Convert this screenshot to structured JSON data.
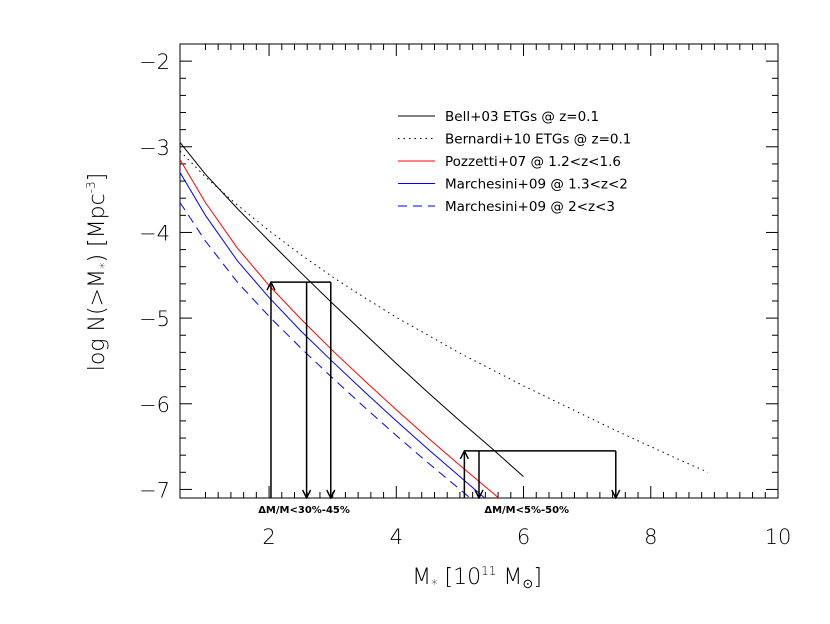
{
  "chart_data": {
    "type": "line",
    "title": "",
    "xlabel": {
      "main": "M",
      "sub": "*",
      "mid": " [10",
      "sup": "11",
      "post": " M",
      "sub2": "⊙",
      "end": "]"
    },
    "ylabel": {
      "main": "log N(>M",
      "sub": "*",
      "mid": ")  [Mpc",
      "sup": "-3",
      "end": "]"
    },
    "xlim": [
      0.6,
      10
    ],
    "ylim": [
      -7.1,
      -1.8
    ],
    "x_ticks": [
      2,
      4,
      6,
      8,
      10
    ],
    "x_tick_labels": [
      "2",
      "4",
      "6",
      "8",
      "10"
    ],
    "y_ticks": [
      -7,
      -6,
      -5,
      -4,
      -3,
      -2
    ],
    "y_tick_labels": [
      "−7",
      "−6",
      "−5",
      "−4",
      "−3",
      "−2"
    ],
    "grid": false,
    "legend_position": "top-right",
    "series": [
      {
        "name": "Bell+03 ETGs @ z=0.1",
        "color": "#000000",
        "dash": "solid",
        "x": [
          0.6,
          1.0,
          1.5,
          2.0,
          2.5,
          3.0,
          3.5,
          4.0,
          4.5,
          5.0,
          5.5,
          6.0
        ],
        "y": [
          -2.95,
          -3.32,
          -3.72,
          -4.1,
          -4.47,
          -4.83,
          -5.18,
          -5.53,
          -5.87,
          -6.2,
          -6.52,
          -6.85
        ]
      },
      {
        "name": "Bernardi+10 ETGs @ z=0.1",
        "color": "#000000",
        "dash": "dotted",
        "x": [
          0.6,
          1.0,
          1.5,
          2.0,
          2.5,
          3.0,
          3.5,
          4.0,
          4.5,
          5.0,
          5.5,
          6.0,
          6.5,
          7.0,
          7.5,
          8.0,
          8.5,
          8.9
        ],
        "y": [
          -3.05,
          -3.35,
          -3.68,
          -3.98,
          -4.26,
          -4.52,
          -4.76,
          -4.99,
          -5.2,
          -5.41,
          -5.6,
          -5.79,
          -5.97,
          -6.15,
          -6.33,
          -6.5,
          -6.67,
          -6.8
        ]
      },
      {
        "name": "Pozzetti+07 @ 1.2<z<1.6",
        "color": "#ff0000",
        "dash": "solid",
        "x": [
          0.6,
          1.0,
          1.5,
          2.0,
          2.5,
          3.0,
          3.5,
          4.0,
          4.5,
          5.0,
          5.5,
          6.0
        ],
        "y": [
          -3.15,
          -3.65,
          -4.18,
          -4.62,
          -5.01,
          -5.38,
          -5.73,
          -6.07,
          -6.4,
          -6.72,
          -7.03,
          -7.35
        ]
      },
      {
        "name": "Marchesini+09 @ 1.3<z<2",
        "color": "#0000ff",
        "dash": "solid",
        "x": [
          0.6,
          1.0,
          1.5,
          2.0,
          2.5,
          3.0,
          3.5,
          4.0,
          4.5,
          5.0,
          5.5,
          6.0
        ],
        "y": [
          -3.3,
          -3.8,
          -4.33,
          -4.76,
          -5.15,
          -5.51,
          -5.86,
          -6.2,
          -6.53,
          -6.85,
          -7.17,
          -7.48
        ]
      },
      {
        "name": "Marchesini+09 @ 2<z<3",
        "color": "#0000ff",
        "dash": "dashed",
        "x": [
          0.6,
          1.0,
          1.5,
          2.0,
          2.5,
          3.0,
          3.5,
          4.0,
          4.5,
          5.0,
          5.5,
          6.0
        ],
        "y": [
          -3.65,
          -4.1,
          -4.58,
          -4.98,
          -5.35,
          -5.7,
          -6.04,
          -6.37,
          -6.69,
          -7.0,
          -7.31,
          -7.6
        ]
      }
    ],
    "annotations": [
      {
        "text": "ΔM/M<30%-45%",
        "x": 2.55,
        "y": -7.1,
        "level": -4.58,
        "x_points": [
          2.03,
          2.59,
          2.97
        ]
      },
      {
        "text": "ΔM/M<5%-50%",
        "x": 6.05,
        "y": -7.1,
        "level": -6.55,
        "x_points": [
          5.07,
          5.3,
          7.45
        ]
      }
    ]
  }
}
